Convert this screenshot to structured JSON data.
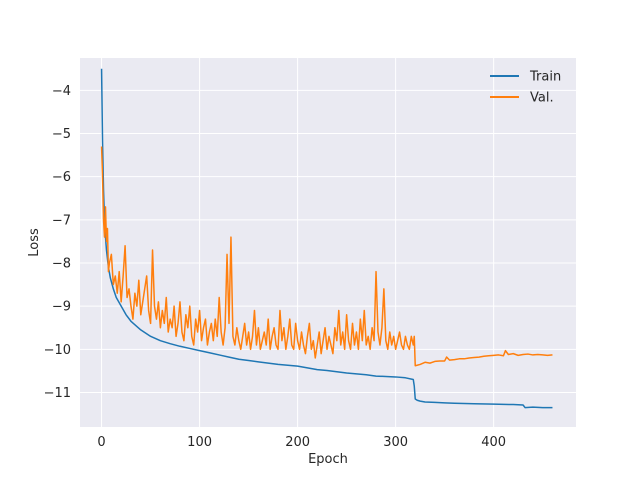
{
  "chart_data": {
    "type": "line",
    "title": "",
    "xlabel": "Epoch",
    "ylabel": "Loss",
    "xlim": [
      -22,
      484
    ],
    "ylim": [
      -11.8,
      -3.25
    ],
    "xticks": [
      0,
      100,
      200,
      300,
      400
    ],
    "yticks": [
      -4,
      -5,
      -6,
      -7,
      -8,
      -9,
      -10,
      -11
    ],
    "grid": true,
    "background": "#eaeaf2",
    "legend_position": "upper-right",
    "series": [
      {
        "name": "Train",
        "color": "#1f77b4",
        "x": [
          0,
          1,
          2,
          3,
          4,
          5,
          7,
          9,
          12,
          15,
          20,
          25,
          30,
          40,
          50,
          60,
          70,
          80,
          90,
          100,
          110,
          120,
          130,
          140,
          150,
          160,
          170,
          180,
          190,
          200,
          210,
          220,
          230,
          240,
          250,
          260,
          270,
          280,
          290,
          300,
          310,
          318,
          319,
          320,
          322,
          325,
          330,
          340,
          350,
          360,
          380,
          400,
          420,
          430,
          432,
          440,
          450,
          460
        ],
        "y": [
          -3.5,
          -5.2,
          -6.3,
          -7.0,
          -7.4,
          -7.7,
          -8.1,
          -8.35,
          -8.6,
          -8.8,
          -9.0,
          -9.2,
          -9.35,
          -9.55,
          -9.7,
          -9.8,
          -9.87,
          -9.93,
          -9.98,
          -10.03,
          -10.08,
          -10.13,
          -10.18,
          -10.23,
          -10.26,
          -10.29,
          -10.32,
          -10.35,
          -10.37,
          -10.39,
          -10.43,
          -10.47,
          -10.49,
          -10.52,
          -10.55,
          -10.57,
          -10.59,
          -10.62,
          -10.63,
          -10.64,
          -10.66,
          -10.7,
          -10.85,
          -11.15,
          -11.18,
          -11.2,
          -11.22,
          -11.23,
          -11.24,
          -11.25,
          -11.26,
          -11.27,
          -11.28,
          -11.29,
          -11.35,
          -11.34,
          -11.35,
          -11.35
        ]
      },
      {
        "name": "Val.",
        "color": "#ff7f0e",
        "x": [
          0,
          1,
          2,
          3,
          4,
          5,
          6,
          7,
          8,
          10,
          12,
          14,
          16,
          18,
          20,
          22,
          24,
          26,
          28,
          30,
          32,
          34,
          36,
          38,
          40,
          42,
          44,
          46,
          48,
          50,
          52,
          54,
          56,
          58,
          60,
          62,
          64,
          66,
          68,
          70,
          72,
          74,
          76,
          78,
          80,
          82,
          84,
          86,
          88,
          90,
          92,
          94,
          96,
          98,
          100,
          102,
          104,
          106,
          108,
          110,
          112,
          114,
          116,
          118,
          120,
          122,
          124,
          126,
          128,
          130,
          132,
          134,
          136,
          138,
          140,
          142,
          144,
          146,
          148,
          150,
          152,
          154,
          156,
          158,
          160,
          162,
          164,
          166,
          168,
          170,
          172,
          174,
          176,
          178,
          180,
          182,
          184,
          186,
          188,
          190,
          192,
          194,
          196,
          198,
          200,
          202,
          204,
          206,
          208,
          210,
          212,
          214,
          216,
          218,
          220,
          222,
          224,
          226,
          228,
          230,
          232,
          234,
          236,
          238,
          240,
          242,
          244,
          246,
          248,
          250,
          252,
          254,
          256,
          258,
          260,
          262,
          264,
          266,
          268,
          270,
          272,
          274,
          276,
          278,
          280,
          282,
          284,
          286,
          288,
          290,
          292,
          294,
          296,
          298,
          300,
          302,
          304,
          306,
          308,
          310,
          312,
          314,
          316,
          318,
          319,
          320,
          325,
          330,
          335,
          340,
          345,
          350,
          352,
          355,
          360,
          365,
          370,
          375,
          380,
          385,
          390,
          395,
          400,
          405,
          410,
          412,
          415,
          420,
          425,
          430,
          435,
          440,
          445,
          450,
          455,
          460
        ],
        "y": [
          -5.3,
          -6.0,
          -7.0,
          -7.4,
          -6.7,
          -7.5,
          -7.2,
          -8.2,
          -8.0,
          -7.8,
          -8.5,
          -8.3,
          -8.7,
          -8.2,
          -8.9,
          -8.3,
          -7.6,
          -8.8,
          -8.6,
          -9.0,
          -9.3,
          -8.7,
          -9.0,
          -8.4,
          -9.2,
          -8.9,
          -8.6,
          -8.3,
          -9.1,
          -9.4,
          -7.7,
          -9.0,
          -9.3,
          -8.9,
          -9.5,
          -9.1,
          -9.4,
          -8.8,
          -9.6,
          -9.3,
          -9.5,
          -9.0,
          -9.7,
          -9.4,
          -8.9,
          -9.6,
          -9.8,
          -9.2,
          -9.5,
          -9.0,
          -9.7,
          -9.9,
          -9.3,
          -9.6,
          -9.1,
          -9.8,
          -9.5,
          -9.3,
          -9.9,
          -9.6,
          -9.4,
          -9.8,
          -9.3,
          -9.7,
          -8.8,
          -9.6,
          -9.9,
          -9.5,
          -7.8,
          -9.4,
          -7.4,
          -9.7,
          -9.9,
          -9.5,
          -9.8,
          -10.0,
          -9.7,
          -9.4,
          -9.9,
          -9.6,
          -10.0,
          -9.7,
          -9.1,
          -9.9,
          -9.5,
          -10.0,
          -9.8,
          -9.6,
          -9.9,
          -9.3,
          -10.0,
          -9.7,
          -9.5,
          -9.9,
          -10.0,
          -9.1,
          -9.8,
          -9.5,
          -10.0,
          -9.7,
          -9.3,
          -9.9,
          -10.0,
          -9.4,
          -9.8,
          -10.0,
          -9.6,
          -9.9,
          -10.1,
          -9.7,
          -9.4,
          -10.0,
          -9.8,
          -10.2,
          -9.9,
          -9.6,
          -10.1,
          -9.8,
          -9.5,
          -10.0,
          -9.7,
          -9.9,
          -10.1,
          -9.5,
          -9.8,
          -9.1,
          -9.9,
          -9.6,
          -10.0,
          -9.2,
          -9.8,
          -10.0,
          -9.4,
          -9.9,
          -9.6,
          -10.0,
          -9.3,
          -9.8,
          -9.1,
          -9.9,
          -9.7,
          -10.0,
          -9.5,
          -9.8,
          -8.2,
          -9.6,
          -9.9,
          -9.5,
          -8.6,
          -9.8,
          -10.0,
          -9.6,
          -9.9,
          -9.7,
          -10.0,
          -9.8,
          -9.6,
          -9.9,
          -10.0,
          -9.7,
          -9.9,
          -10.0,
          -9.7,
          -9.9,
          -9.7,
          -10.38,
          -10.35,
          -10.3,
          -10.32,
          -10.28,
          -10.27,
          -10.27,
          -10.18,
          -10.25,
          -10.24,
          -10.22,
          -10.22,
          -10.2,
          -10.19,
          -10.18,
          -10.16,
          -10.15,
          -10.14,
          -10.13,
          -10.15,
          -10.03,
          -10.12,
          -10.1,
          -10.14,
          -10.12,
          -10.11,
          -10.13,
          -10.12,
          -10.13,
          -10.14,
          -10.13
        ]
      }
    ]
  }
}
